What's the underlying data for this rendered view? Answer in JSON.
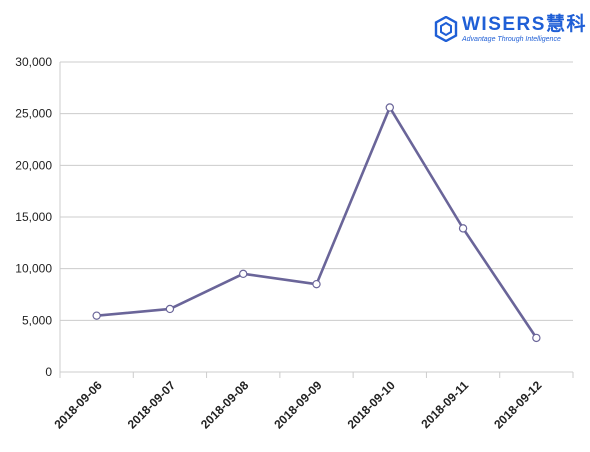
{
  "logo": {
    "wordmark": "WISERS慧科",
    "tagline": "Advantage Through Intelligence",
    "brand_color": "#1f5fd6"
  },
  "chart_data": {
    "type": "line",
    "title": "",
    "xlabel": "",
    "ylabel": "",
    "categories": [
      "2018-09-06",
      "2018-09-07",
      "2018-09-08",
      "2018-09-09",
      "2018-09-10",
      "2018-09-11",
      "2018-09-12"
    ],
    "series": [
      {
        "values": [
          5450,
          6100,
          9500,
          8500,
          25600,
          13900,
          3300
        ],
        "color": "#6a6599"
      }
    ],
    "ylim": [
      0,
      30000
    ],
    "yticks": [
      0,
      5000,
      10000,
      15000,
      20000,
      25000,
      30000
    ],
    "ytick_labels": [
      "0",
      "5,000",
      "10,000",
      "15,000",
      "20,000",
      "25,000",
      "30,000"
    ],
    "grid": true,
    "legend": "none",
    "marker": "hollow-circle",
    "grid_color": "#cccccc",
    "axis_color": "#cccccc"
  }
}
